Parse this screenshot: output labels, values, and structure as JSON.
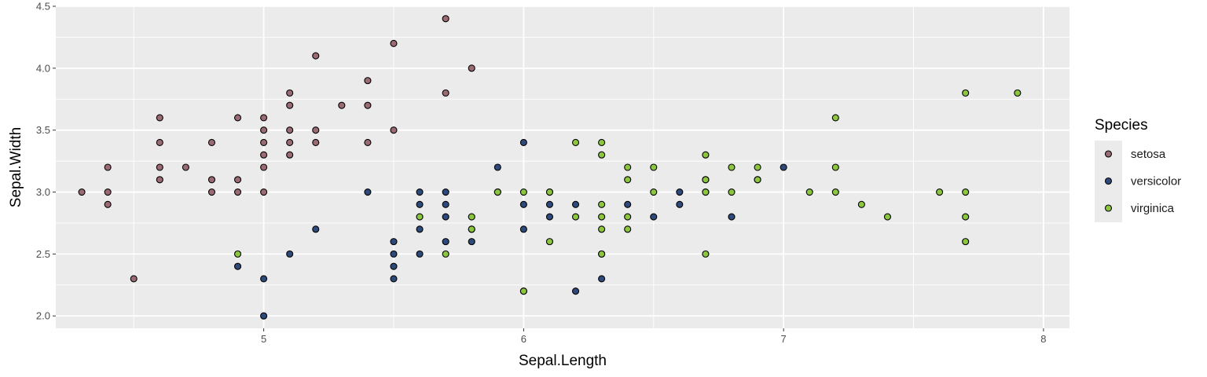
{
  "chart_data": {
    "type": "scatter",
    "title": "",
    "xlabel": "Sepal.Length",
    "ylabel": "Sepal.Width",
    "xlim": [
      4.2,
      8.1
    ],
    "ylim": [
      1.9,
      4.5
    ],
    "x_ticks": [
      5,
      6,
      7,
      8
    ],
    "x_tick_labels": [
      "5",
      "6",
      "7",
      "8"
    ],
    "y_ticks": [
      2.0,
      2.5,
      3.0,
      3.5,
      4.0,
      4.5
    ],
    "y_tick_labels": [
      "2.0",
      "2.5",
      "3.0",
      "3.5",
      "4.0",
      "4.5"
    ],
    "grid": true,
    "legend": {
      "title": "Species",
      "position": "right"
    },
    "series": [
      {
        "name": "setosa",
        "color": "#9b6b73",
        "points": [
          [
            4.3,
            3.0
          ],
          [
            4.4,
            3.2
          ],
          [
            4.4,
            3.0
          ],
          [
            4.4,
            2.9
          ],
          [
            4.5,
            2.3
          ],
          [
            4.6,
            3.6
          ],
          [
            4.6,
            3.4
          ],
          [
            4.6,
            3.2
          ],
          [
            4.6,
            3.1
          ],
          [
            4.7,
            3.2
          ],
          [
            4.8,
            3.4
          ],
          [
            4.8,
            3.1
          ],
          [
            4.8,
            3.0
          ],
          [
            4.9,
            3.6
          ],
          [
            4.9,
            3.1
          ],
          [
            4.9,
            3.0
          ],
          [
            5.0,
            3.6
          ],
          [
            5.0,
            3.5
          ],
          [
            5.0,
            3.4
          ],
          [
            5.0,
            3.3
          ],
          [
            5.0,
            3.2
          ],
          [
            5.0,
            3.0
          ],
          [
            5.1,
            3.8
          ],
          [
            5.1,
            3.7
          ],
          [
            5.1,
            3.5
          ],
          [
            5.1,
            3.4
          ],
          [
            5.1,
            3.3
          ],
          [
            5.2,
            4.1
          ],
          [
            5.2,
            3.5
          ],
          [
            5.2,
            3.4
          ],
          [
            5.3,
            3.7
          ],
          [
            5.4,
            3.9
          ],
          [
            5.4,
            3.7
          ],
          [
            5.4,
            3.4
          ],
          [
            5.5,
            4.2
          ],
          [
            5.5,
            3.5
          ],
          [
            5.7,
            4.4
          ],
          [
            5.7,
            3.8
          ],
          [
            5.8,
            4.0
          ]
        ]
      },
      {
        "name": "versicolor",
        "color": "#2e4a7a",
        "points": [
          [
            4.9,
            2.4
          ],
          [
            5.0,
            2.3
          ],
          [
            5.0,
            2.0
          ],
          [
            5.1,
            2.5
          ],
          [
            5.2,
            2.7
          ],
          [
            5.4,
            3.0
          ],
          [
            5.5,
            2.6
          ],
          [
            5.5,
            2.5
          ],
          [
            5.5,
            2.4
          ],
          [
            5.5,
            2.3
          ],
          [
            5.6,
            3.0
          ],
          [
            5.6,
            2.9
          ],
          [
            5.6,
            2.7
          ],
          [
            5.6,
            2.5
          ],
          [
            5.7,
            3.0
          ],
          [
            5.7,
            2.9
          ],
          [
            5.7,
            2.8
          ],
          [
            5.7,
            2.6
          ],
          [
            5.8,
            2.7
          ],
          [
            5.8,
            2.6
          ],
          [
            5.9,
            3.2
          ],
          [
            5.9,
            3.0
          ],
          [
            6.0,
            3.4
          ],
          [
            6.0,
            2.9
          ],
          [
            6.0,
            2.7
          ],
          [
            6.0,
            2.2
          ],
          [
            6.1,
            3.0
          ],
          [
            6.1,
            2.9
          ],
          [
            6.1,
            2.8
          ],
          [
            6.2,
            2.9
          ],
          [
            6.2,
            2.2
          ],
          [
            6.3,
            2.5
          ],
          [
            6.3,
            2.3
          ],
          [
            6.4,
            2.9
          ],
          [
            6.5,
            2.8
          ],
          [
            6.6,
            3.0
          ],
          [
            6.6,
            2.9
          ],
          [
            6.7,
            3.1
          ],
          [
            6.7,
            3.0
          ],
          [
            6.8,
            2.8
          ],
          [
            6.9,
            3.1
          ],
          [
            7.0,
            3.2
          ]
        ]
      },
      {
        "name": "virginica",
        "color": "#8cc63f",
        "points": [
          [
            4.9,
            2.5
          ],
          [
            5.6,
            2.8
          ],
          [
            5.7,
            2.5
          ],
          [
            5.8,
            2.8
          ],
          [
            5.8,
            2.7
          ],
          [
            5.9,
            3.0
          ],
          [
            6.0,
            3.0
          ],
          [
            6.0,
            2.2
          ],
          [
            6.1,
            3.0
          ],
          [
            6.1,
            2.6
          ],
          [
            6.2,
            3.4
          ],
          [
            6.2,
            2.8
          ],
          [
            6.3,
            3.4
          ],
          [
            6.3,
            3.3
          ],
          [
            6.3,
            2.9
          ],
          [
            6.3,
            2.8
          ],
          [
            6.3,
            2.7
          ],
          [
            6.3,
            2.5
          ],
          [
            6.4,
            3.2
          ],
          [
            6.4,
            3.1
          ],
          [
            6.4,
            2.8
          ],
          [
            6.4,
            2.7
          ],
          [
            6.5,
            3.2
          ],
          [
            6.5,
            3.0
          ],
          [
            6.7,
            3.3
          ],
          [
            6.7,
            3.1
          ],
          [
            6.7,
            3.0
          ],
          [
            6.7,
            2.5
          ],
          [
            6.8,
            3.2
          ],
          [
            6.8,
            3.0
          ],
          [
            6.9,
            3.2
          ],
          [
            6.9,
            3.1
          ],
          [
            7.1,
            3.0
          ],
          [
            7.2,
            3.6
          ],
          [
            7.2,
            3.2
          ],
          [
            7.2,
            3.0
          ],
          [
            7.3,
            2.9
          ],
          [
            7.4,
            2.8
          ],
          [
            7.6,
            3.0
          ],
          [
            7.7,
            3.8
          ],
          [
            7.7,
            3.0
          ],
          [
            7.7,
            2.8
          ],
          [
            7.7,
            2.6
          ],
          [
            7.9,
            3.8
          ]
        ]
      }
    ]
  }
}
